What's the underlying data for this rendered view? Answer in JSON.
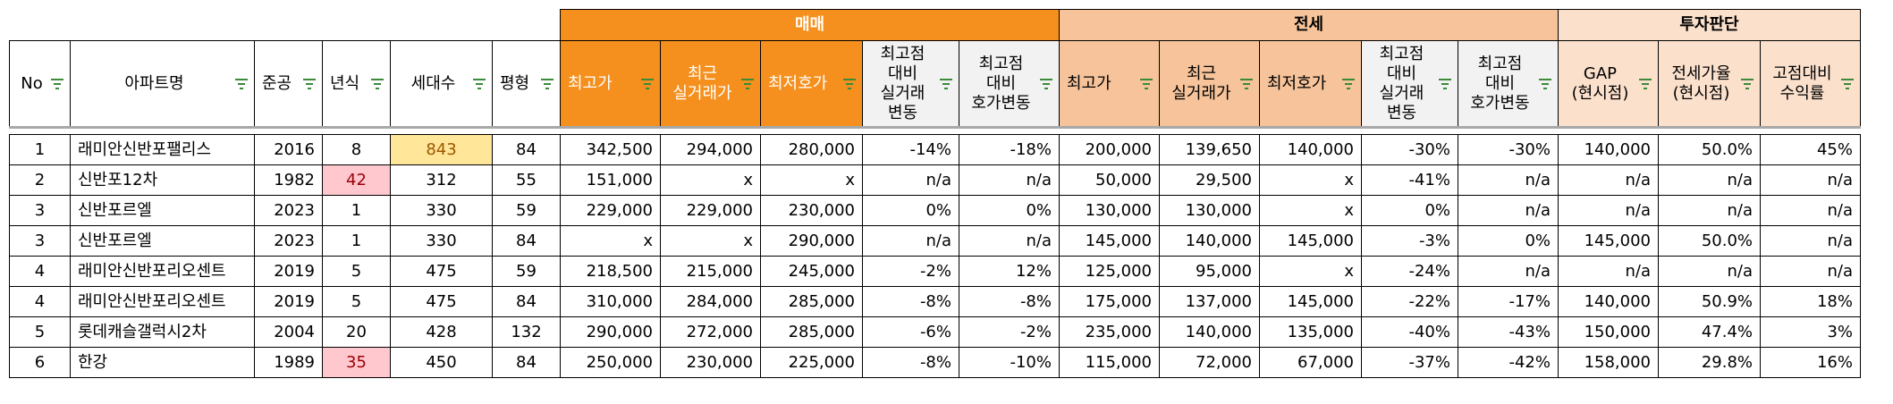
{
  "group_headers": {
    "sale": "매매",
    "jeonse": "전세",
    "invest": "투자판단"
  },
  "columns": {
    "no": "No",
    "name": "아파트명",
    "built": "준공",
    "age": "년식",
    "households": "세대수",
    "area": "평형",
    "sale_max": "최고가",
    "sale_recent": [
      "최근",
      "실거래가"
    ],
    "sale_lowask": "최저호가",
    "sale_chg_deal": [
      "최고점",
      "대비",
      "실거래",
      "변동"
    ],
    "sale_chg_ask": [
      "최고점",
      "대비",
      "호가변동"
    ],
    "jeonse_max": "최고가",
    "jeonse_recent": [
      "최근",
      "실거래가"
    ],
    "jeonse_lowask": "최저호가",
    "jeonse_chg_deal": [
      "최고점",
      "대비",
      "실거래",
      "변동"
    ],
    "jeonse_chg_ask": [
      "최고점",
      "대비",
      "호가변동"
    ],
    "gap": [
      "GAP",
      "(현시점)"
    ],
    "ratio": [
      "전세가율",
      "(현시점)"
    ],
    "return": [
      "고점대비",
      "수익률"
    ]
  },
  "colors": {
    "sale_header": "#f5901e",
    "jeonse_header": "#f6c39a",
    "invest_header": "#fbe0cc",
    "filter_green": "#3a8a3a",
    "highlight_yellow": "#ffe699",
    "highlight_red": "#ffc7ce"
  },
  "rows": [
    {
      "no": "1",
      "name": "래미안신반포팰리스",
      "built": "2016",
      "age": "8",
      "households": "843",
      "area": "84",
      "sale_max": "342,500",
      "sale_recent": "294,000",
      "sale_lowask": "280,000",
      "sale_chg_deal": "-14%",
      "sale_chg_ask": "-18%",
      "jeonse_max": "200,000",
      "jeonse_recent": "139,650",
      "jeonse_lowask": "140,000",
      "jeonse_chg_deal": "-30%",
      "jeonse_chg_ask": "-30%",
      "gap": "140,000",
      "ratio": "50.0%",
      "return": "45%"
    },
    {
      "no": "2",
      "name": "신반포12차",
      "built": "1982",
      "age": "42",
      "households": "312",
      "area": "55",
      "sale_max": "151,000",
      "sale_recent": "x",
      "sale_lowask": "x",
      "sale_chg_deal": "n/a",
      "sale_chg_ask": "n/a",
      "jeonse_max": "50,000",
      "jeonse_recent": "29,500",
      "jeonse_lowask": "x",
      "jeonse_chg_deal": "-41%",
      "jeonse_chg_ask": "n/a",
      "gap": "n/a",
      "ratio": "n/a",
      "return": "n/a"
    },
    {
      "no": "3",
      "name": "신반포르엘",
      "built": "2023",
      "age": "1",
      "households": "330",
      "area": "59",
      "sale_max": "229,000",
      "sale_recent": "229,000",
      "sale_lowask": "230,000",
      "sale_chg_deal": "0%",
      "sale_chg_ask": "0%",
      "jeonse_max": "130,000",
      "jeonse_recent": "130,000",
      "jeonse_lowask": "x",
      "jeonse_chg_deal": "0%",
      "jeonse_chg_ask": "n/a",
      "gap": "n/a",
      "ratio": "n/a",
      "return": "n/a"
    },
    {
      "no": "3",
      "name": "신반포르엘",
      "built": "2023",
      "age": "1",
      "households": "330",
      "area": "84",
      "sale_max": "x",
      "sale_recent": "x",
      "sale_lowask": "290,000",
      "sale_chg_deal": "n/a",
      "sale_chg_ask": "n/a",
      "jeonse_max": "145,000",
      "jeonse_recent": "140,000",
      "jeonse_lowask": "145,000",
      "jeonse_chg_deal": "-3%",
      "jeonse_chg_ask": "0%",
      "gap": "145,000",
      "ratio": "50.0%",
      "return": "n/a"
    },
    {
      "no": "4",
      "name": "래미안신반포리오센트",
      "built": "2019",
      "age": "5",
      "households": "475",
      "area": "59",
      "sale_max": "218,500",
      "sale_recent": "215,000",
      "sale_lowask": "245,000",
      "sale_chg_deal": "-2%",
      "sale_chg_ask": "12%",
      "jeonse_max": "125,000",
      "jeonse_recent": "95,000",
      "jeonse_lowask": "x",
      "jeonse_chg_deal": "-24%",
      "jeonse_chg_ask": "n/a",
      "gap": "n/a",
      "ratio": "n/a",
      "return": "n/a"
    },
    {
      "no": "4",
      "name": "래미안신반포리오센트",
      "built": "2019",
      "age": "5",
      "households": "475",
      "area": "84",
      "sale_max": "310,000",
      "sale_recent": "284,000",
      "sale_lowask": "285,000",
      "sale_chg_deal": "-8%",
      "sale_chg_ask": "-8%",
      "jeonse_max": "175,000",
      "jeonse_recent": "137,000",
      "jeonse_lowask": "145,000",
      "jeonse_chg_deal": "-22%",
      "jeonse_chg_ask": "-17%",
      "gap": "140,000",
      "ratio": "50.9%",
      "return": "18%"
    },
    {
      "no": "5",
      "name": "롯데캐슬갤럭시2차",
      "built": "2004",
      "age": "20",
      "households": "428",
      "area": "132",
      "sale_max": "290,000",
      "sale_recent": "272,000",
      "sale_lowask": "285,000",
      "sale_chg_deal": "-6%",
      "sale_chg_ask": "-2%",
      "jeonse_max": "235,000",
      "jeonse_recent": "140,000",
      "jeonse_lowask": "135,000",
      "jeonse_chg_deal": "-40%",
      "jeonse_chg_ask": "-43%",
      "gap": "150,000",
      "ratio": "47.4%",
      "return": "3%"
    },
    {
      "no": "6",
      "name": "한강",
      "built": "1989",
      "age": "35",
      "households": "450",
      "area": "84",
      "sale_max": "250,000",
      "sale_recent": "230,000",
      "sale_lowask": "225,000",
      "sale_chg_deal": "-8%",
      "sale_chg_ask": "-10%",
      "jeonse_max": "115,000",
      "jeonse_recent": "72,000",
      "jeonse_lowask": "67,000",
      "jeonse_chg_deal": "-37%",
      "jeonse_chg_ask": "-42%",
      "gap": "158,000",
      "ratio": "29.8%",
      "return": "16%"
    }
  ]
}
